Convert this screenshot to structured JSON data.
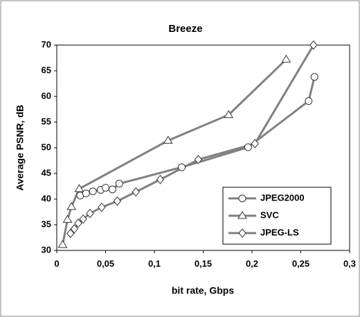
{
  "chart_data": {
    "type": "line",
    "title": "Breeze",
    "x_label": "bit rate, Gbps",
    "y_label": "Average PSNR, dB",
    "xlim": [
      0,
      0.3
    ],
    "xticks": [
      0,
      {
        "value": 0.05,
        "label": "0,05"
      },
      {
        "value": 0.1,
        "label": "0,1"
      },
      {
        "value": 0.15,
        "label": "0,15"
      },
      {
        "value": 0.2,
        "label": "0,2"
      },
      {
        "value": 0.25,
        "label": "0,25"
      },
      {
        "value": 0.3,
        "label": "0,3"
      }
    ],
    "ylim": [
      30,
      70
    ],
    "yticks": [
      30,
      35,
      40,
      45,
      50,
      55,
      60,
      65,
      70
    ],
    "legend": "lower right",
    "series": [
      {
        "name": "JPEG2000",
        "color": "#808080",
        "marker": "circle",
        "x": [
          0.024,
          0.03,
          0.037,
          0.045,
          0.05,
          0.057,
          0.064,
          0.128,
          0.196,
          0.258,
          0.264
        ],
        "values": [
          40.7,
          41.1,
          41.5,
          41.8,
          42.2,
          41.9,
          43.0,
          46.2,
          50.1,
          59.1,
          63.8
        ]
      },
      {
        "name": "SVC",
        "color": "#808080",
        "marker": "triangle",
        "x": [
          0.006,
          0.011,
          0.015,
          0.023,
          0.114,
          0.176,
          0.235
        ],
        "values": [
          31.1,
          36.0,
          38.5,
          42.0,
          51.4,
          56.4,
          67.2
        ]
      },
      {
        "name": "JPEG-LS",
        "color": "#808080",
        "marker": "diamond",
        "x": [
          0.014,
          0.018,
          0.022,
          0.027,
          0.034,
          0.046,
          0.062,
          0.081,
          0.106,
          0.145,
          0.203,
          0.263
        ],
        "values": [
          33.3,
          34.2,
          35.3,
          36.1,
          37.2,
          38.4,
          39.6,
          41.4,
          43.8,
          47.7,
          50.8,
          70.0
        ]
      }
    ]
  }
}
